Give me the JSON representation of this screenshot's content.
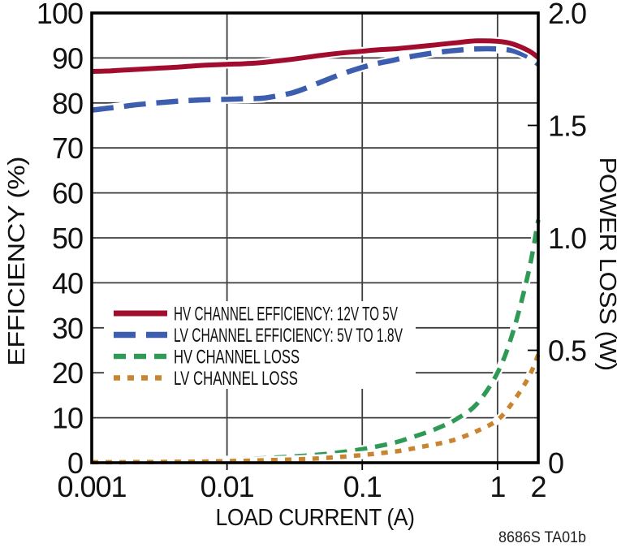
{
  "footer_note": "8686S TA01b",
  "chart_data": {
    "type": "line",
    "title": "",
    "xlabel": "LOAD CURRENT  (A)",
    "ylabel_left": "EFFICIENCY (%)",
    "ylabel_right": "POWER LOSS (W)",
    "x_scale": "log",
    "xlim": [
      0.001,
      2
    ],
    "ylim_left": [
      0,
      100
    ],
    "ylim_right": [
      0,
      2.0
    ],
    "grid": {
      "x_gridlines": [
        0.01,
        0.1,
        1
      ],
      "horizontal_gridlines_every": 10
    },
    "x_ticks": [
      {
        "v": 0.001,
        "label": "0.001"
      },
      {
        "v": 0.01,
        "label": "0.01"
      },
      {
        "v": 0.1,
        "label": "0.1"
      },
      {
        "v": 1,
        "label": "1"
      },
      {
        "v": 2,
        "label": "2"
      }
    ],
    "y_left_ticks": [
      {
        "v": 100,
        "label": "100"
      },
      {
        "v": 90,
        "label": "90"
      },
      {
        "v": 80,
        "label": "80"
      },
      {
        "v": 70,
        "label": "70"
      },
      {
        "v": 60,
        "label": "60"
      },
      {
        "v": 50,
        "label": "50"
      },
      {
        "v": 40,
        "label": "40"
      },
      {
        "v": 30,
        "label": "30"
      },
      {
        "v": 20,
        "label": "20"
      },
      {
        "v": 10,
        "label": "10"
      },
      {
        "v": 0,
        "label": "0"
      }
    ],
    "y_right_ticks": [
      {
        "v": 2.0,
        "label": "2.0"
      },
      {
        "v": 1.5,
        "label": "1.5"
      },
      {
        "v": 1.0,
        "label": "1.0"
      },
      {
        "v": 0.5,
        "label": "0.5"
      },
      {
        "v": 0,
        "label": "0"
      }
    ],
    "legend_position": "inside-middle-left",
    "x": [
      0.001,
      0.0013,
      0.0017,
      0.002,
      0.003,
      0.004,
      0.005,
      0.007,
      0.01,
      0.013,
      0.017,
      0.02,
      0.03,
      0.04,
      0.05,
      0.07,
      0.1,
      0.13,
      0.17,
      0.2,
      0.3,
      0.4,
      0.5,
      0.7,
      1.0,
      1.3,
      1.7,
      2.0
    ],
    "series": [
      {
        "name": "HV CHANNEL EFFICIENCY: 12V TO 5V",
        "axis": "left",
        "unit": "%",
        "color": "#A30D2D",
        "style": "solid",
        "values": [
          87.0,
          87.1,
          87.3,
          87.4,
          87.7,
          87.9,
          88.1,
          88.4,
          88.6,
          88.7,
          88.9,
          89.1,
          89.7,
          90.2,
          90.6,
          91.1,
          91.5,
          91.8,
          92.0,
          92.2,
          92.7,
          93.1,
          93.4,
          93.8,
          93.7,
          93.1,
          91.6,
          90.1
        ]
      },
      {
        "name": "LV CHANNEL EFFICIENCY: 5V TO 1.8V",
        "axis": "left",
        "unit": "%",
        "color": "#3D5EAE",
        "style": "long-dash",
        "values": [
          78.4,
          78.8,
          79.2,
          79.5,
          80.0,
          80.3,
          80.5,
          80.7,
          80.8,
          80.9,
          81.0,
          81.2,
          82.2,
          83.5,
          84.7,
          86.4,
          87.9,
          88.8,
          89.5,
          90.0,
          90.9,
          91.4,
          91.7,
          92.0,
          92.0,
          91.6,
          90.2,
          88.6
        ]
      },
      {
        "name": "HV CHANNEL LOSS",
        "axis": "right",
        "unit": "W",
        "color": "#2F9A55",
        "style": "dash",
        "values": [
          0.004,
          0.004,
          0.005,
          0.005,
          0.006,
          0.007,
          0.008,
          0.01,
          0.013,
          0.016,
          0.019,
          0.021,
          0.027,
          0.032,
          0.037,
          0.047,
          0.06,
          0.073,
          0.088,
          0.1,
          0.135,
          0.165,
          0.195,
          0.26,
          0.4,
          0.58,
          0.85,
          1.08
        ]
      },
      {
        "name": "LV CHANNEL LOSS",
        "axis": "right",
        "unit": "W",
        "color": "#C9842F",
        "style": "dot",
        "values": [
          0.002,
          0.002,
          0.002,
          0.003,
          0.003,
          0.004,
          0.004,
          0.005,
          0.007,
          0.008,
          0.01,
          0.011,
          0.014,
          0.017,
          0.02,
          0.026,
          0.034,
          0.041,
          0.049,
          0.055,
          0.075,
          0.09,
          0.105,
          0.14,
          0.19,
          0.27,
          0.38,
          0.48
        ]
      }
    ]
  }
}
